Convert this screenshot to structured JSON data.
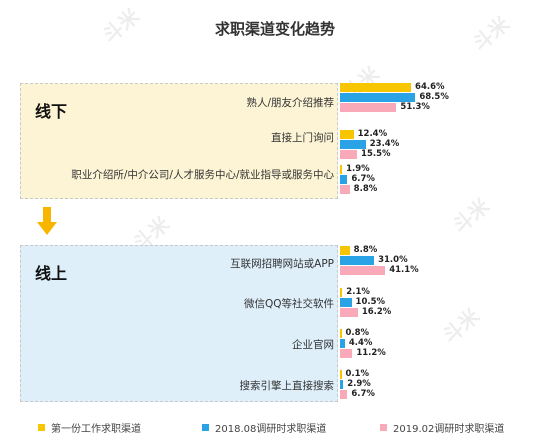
{
  "chart_data": {
    "type": "bar",
    "orientation": "horizontal",
    "title": "求职渠道变化趋势",
    "watermark": "斗米",
    "groups": [
      {
        "label": "线下",
        "categories": [
          "熟人/朋友介绍推荐",
          "直接上门询问",
          "职业介绍所/中介公司/人才服务中心/就业指导或服务中心"
        ]
      },
      {
        "label": "线上",
        "categories": [
          "互联网招聘网站或APP",
          "微信QQ等社交软件",
          "企业官网",
          "搜索引擎上直接搜索"
        ]
      }
    ],
    "series": [
      {
        "name": "第一份工作求职渠道",
        "color": "#f7c600",
        "values": [
          64.6,
          12.4,
          1.9,
          8.8,
          2.1,
          0.8,
          0.1
        ],
        "labels": [
          "64.6%",
          "12.4%",
          "1.9%",
          "8.8%",
          "2.1%",
          "0.8%",
          "0.1%"
        ]
      },
      {
        "name": "2018.08调研时求职渠道",
        "color": "#2aa3e6",
        "values": [
          68.5,
          23.4,
          6.7,
          31.0,
          10.5,
          4.4,
          2.9
        ],
        "labels": [
          "68.5%",
          "23.4%",
          "6.7%",
          "31.0%",
          "10.5%",
          "4.4%",
          "2.9%"
        ]
      },
      {
        "name": "2019.02调研时求职渠道",
        "color": "#f9a9b8",
        "values": [
          51.3,
          15.5,
          8.8,
          41.1,
          16.2,
          11.2,
          6.7
        ],
        "labels": [
          "51.3%",
          "15.5%",
          "8.8%",
          "41.1%",
          "16.2%",
          "11.2%",
          "6.7%"
        ]
      }
    ],
    "legend_position": "bottom",
    "arrow_color": "#f7b500"
  }
}
